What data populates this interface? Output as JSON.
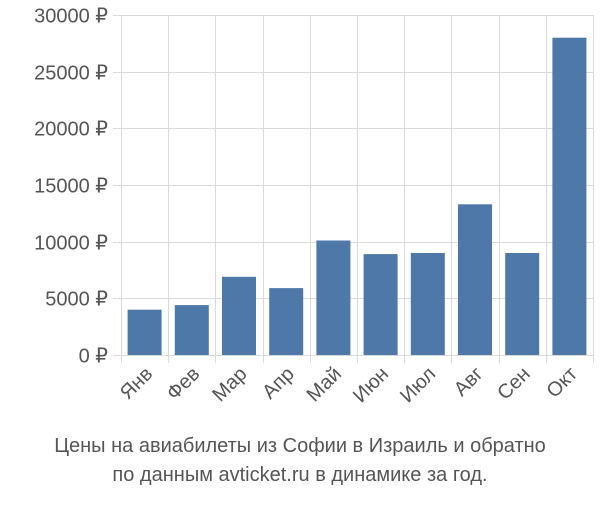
{
  "colors": {
    "bar": "#4d78a8",
    "grid": "#d9d9d9",
    "axis_text": "#555555",
    "background": "#ffffff"
  },
  "caption": {
    "line1": "Цены на авиабилеты из Софии в Израиль и обратно",
    "line2": "по данным avticket.ru в динамике за год."
  },
  "chart_data": {
    "type": "bar",
    "title": "",
    "xlabel": "",
    "ylabel": "",
    "categories": [
      "Янв",
      "Фев",
      "Мар",
      "Апр",
      "Май",
      "Июн",
      "Июл",
      "Авг",
      "Сен",
      "Окт"
    ],
    "values": [
      4000,
      4400,
      6900,
      5900,
      10100,
      8900,
      9000,
      13300,
      9000,
      28000
    ],
    "ylim": [
      0,
      30000
    ],
    "yticks": [
      0,
      5000,
      10000,
      15000,
      20000,
      25000,
      30000
    ],
    "ytick_labels": [
      "0 ₽",
      "5000 ₽",
      "10000 ₽",
      "15000 ₽",
      "20000 ₽",
      "25000 ₽",
      "30000 ₽"
    ],
    "grid": true,
    "legend": "none"
  }
}
